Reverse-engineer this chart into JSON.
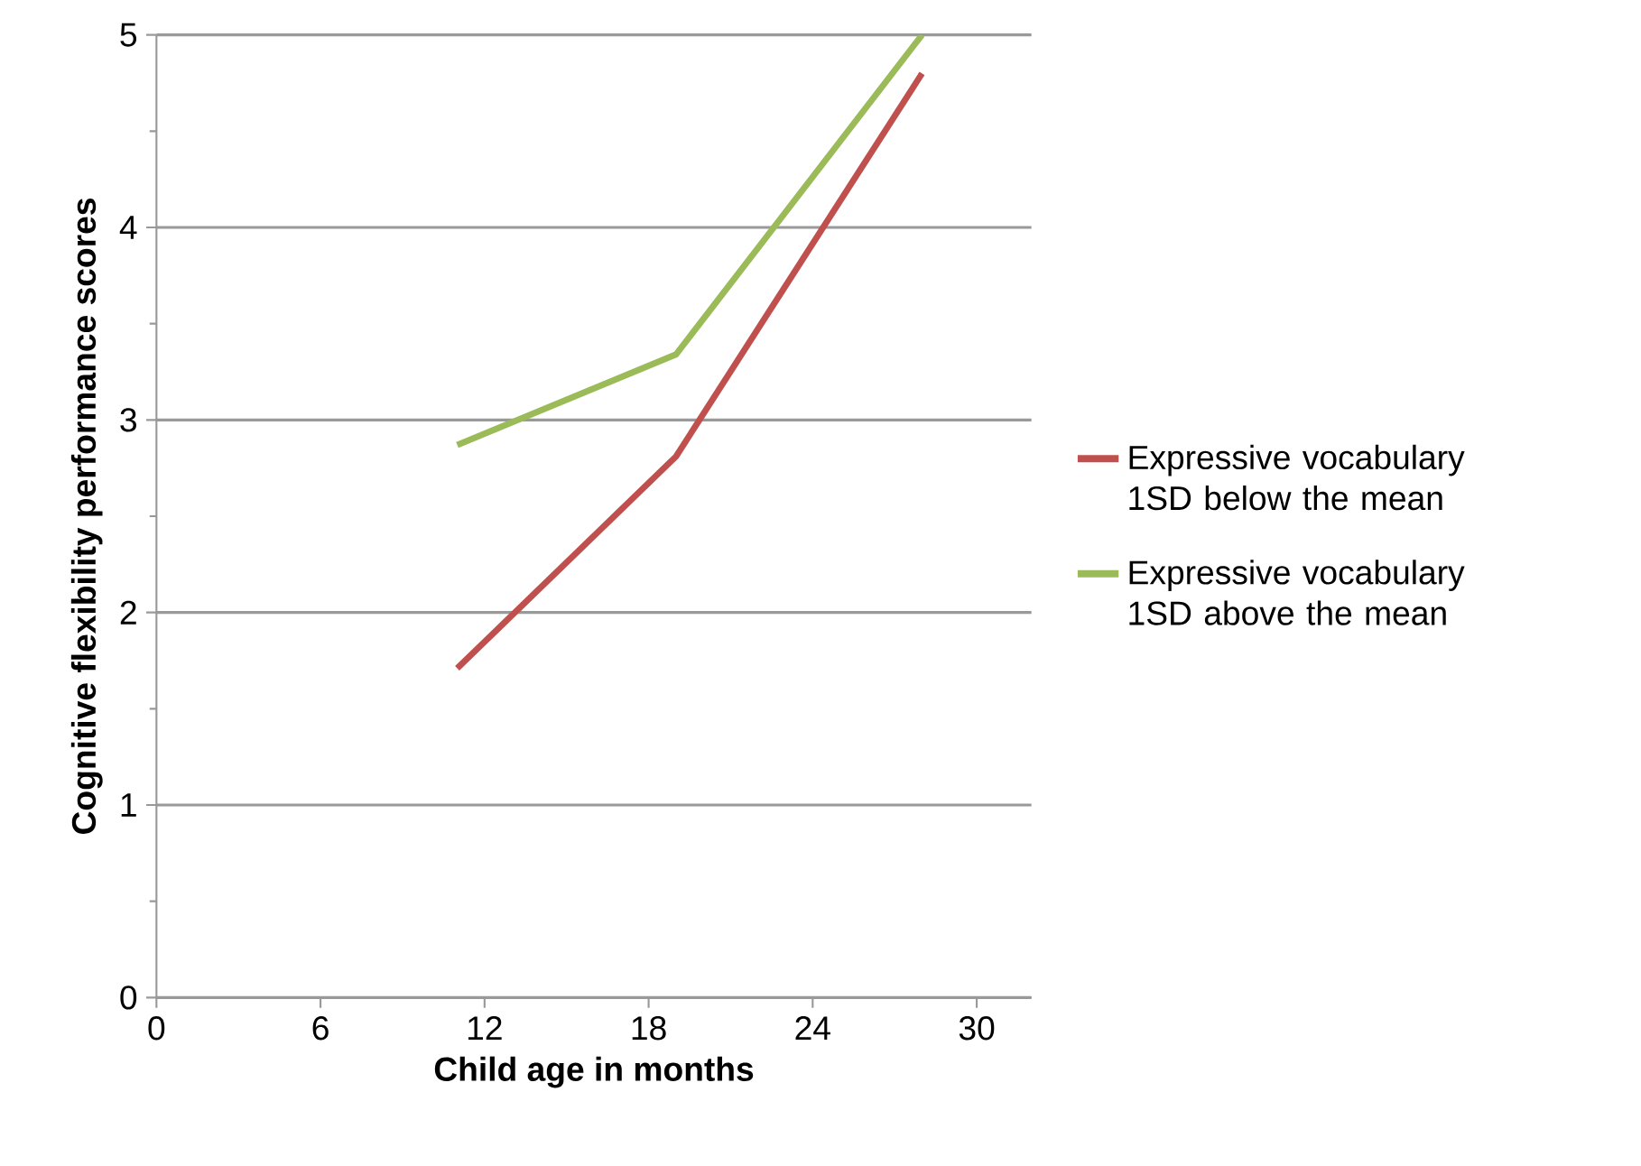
{
  "chart_data": {
    "type": "line",
    "xlabel": "Child age in months",
    "ylabel": "Cognitive flexibility performance scores",
    "xlim": [
      0,
      32
    ],
    "ylim": [
      0,
      5
    ],
    "xticks": [
      0,
      6,
      12,
      18,
      24,
      30
    ],
    "yticks": [
      0,
      1,
      2,
      3,
      4,
      5
    ],
    "grid": "y",
    "legend": "right",
    "marker": "none",
    "line_style": "solid",
    "series": [
      {
        "name": "Expressive vocabulary 1SD below the mean",
        "color": "#c0504d",
        "x": [
          11,
          19,
          28
        ],
        "values": [
          1.71,
          2.81,
          4.8
        ]
      },
      {
        "name": "Expressive vocabulary 1SD above the mean",
        "color": "#9bbb59",
        "x": [
          11,
          19,
          28
        ],
        "values": [
          2.87,
          3.34,
          5.0
        ]
      }
    ]
  }
}
